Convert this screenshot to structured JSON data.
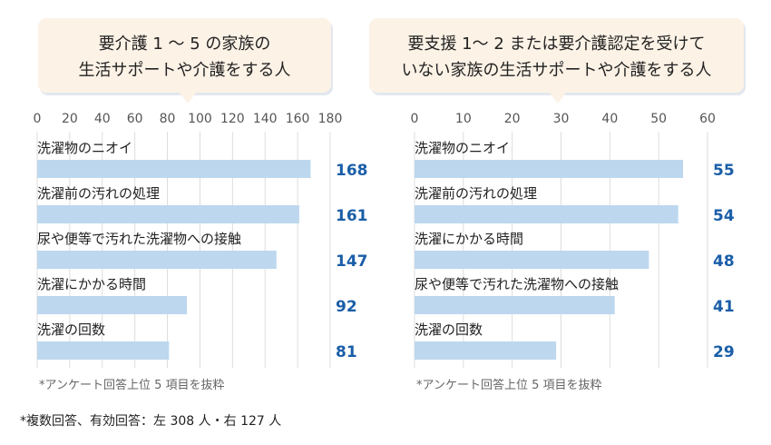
{
  "footnote": "*複数回答、有効回答：左 308 人・右 127 人",
  "colors": {
    "bar": "#bdd7ee",
    "value": "#1a5ea8",
    "callout": "#fcf2e6",
    "grid": "#dddddd"
  },
  "chart_data": [
    {
      "type": "bar",
      "orientation": "horizontal",
      "title": [
        "要介護 1 ～ 5 の家族の",
        "生活サポートや介護をする人"
      ],
      "categories": [
        "洗濯物のニオイ",
        "洗濯前の汚れの処理",
        "尿や便等で汚れた洗濯物への接触",
        "洗濯にかかる時間",
        "洗濯の回数"
      ],
      "values": [
        168,
        161,
        147,
        92,
        81
      ],
      "xlim": [
        0,
        180
      ],
      "ticks": [
        0,
        20,
        40,
        60,
        80,
        100,
        120,
        140,
        160,
        180
      ],
      "grid": true,
      "note": "*アンケート回答上位 5 項目を抜粋"
    },
    {
      "type": "bar",
      "orientation": "horizontal",
      "title": [
        "要支援 1～ 2 または要介護認定を受けて",
        "いない家族の生活サポートや介護をする人"
      ],
      "categories": [
        "洗濯物のニオイ",
        "洗濯前の汚れの処理",
        "洗濯にかかる時間",
        "尿や便等で汚れた洗濯物への接触",
        "洗濯の回数"
      ],
      "values": [
        55,
        54,
        48,
        41,
        29
      ],
      "xlim": [
        0,
        60
      ],
      "ticks": [
        0,
        10,
        20,
        30,
        40,
        50,
        60
      ],
      "grid": true,
      "note": "*アンケート回答上位 5 項目を抜粋"
    }
  ]
}
